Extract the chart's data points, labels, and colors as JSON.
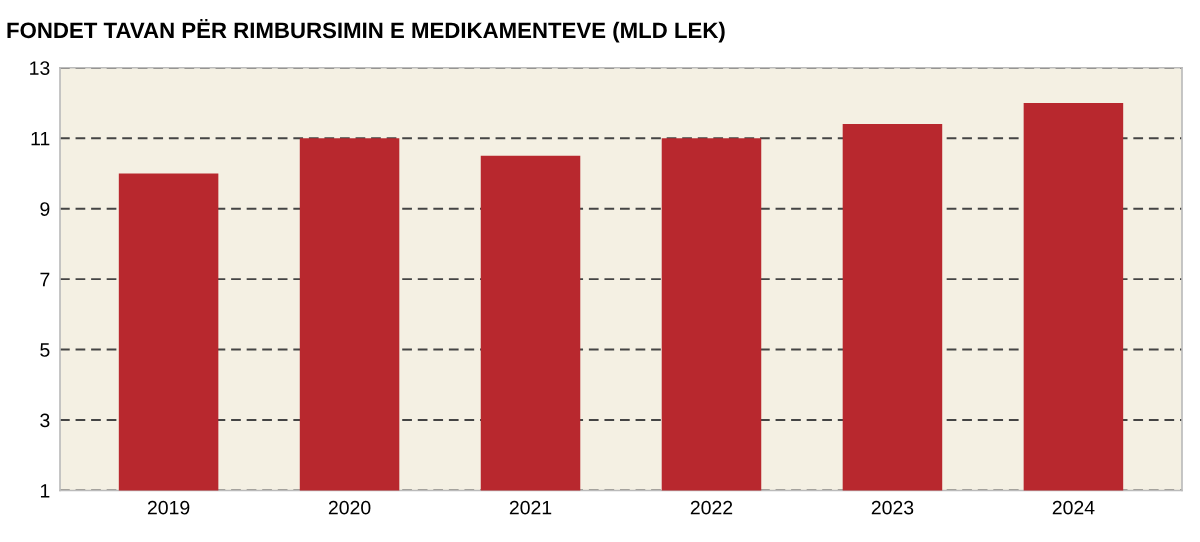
{
  "chart_data": {
    "type": "bar",
    "title": "FONDET TAVAN PËR RIMBURSIMIN E MEDIKAMENTEVE (MLD LEK)",
    "categories": [
      "2019",
      "2020",
      "2021",
      "2022",
      "2023",
      "2024"
    ],
    "values": [
      10,
      11,
      10.5,
      11,
      11.4,
      12
    ],
    "color": "#b8282e",
    "ylim": [
      1,
      13
    ],
    "yticks": [
      1,
      3,
      5,
      7,
      9,
      11,
      13
    ],
    "grid": "y",
    "line_style": "dashed"
  }
}
